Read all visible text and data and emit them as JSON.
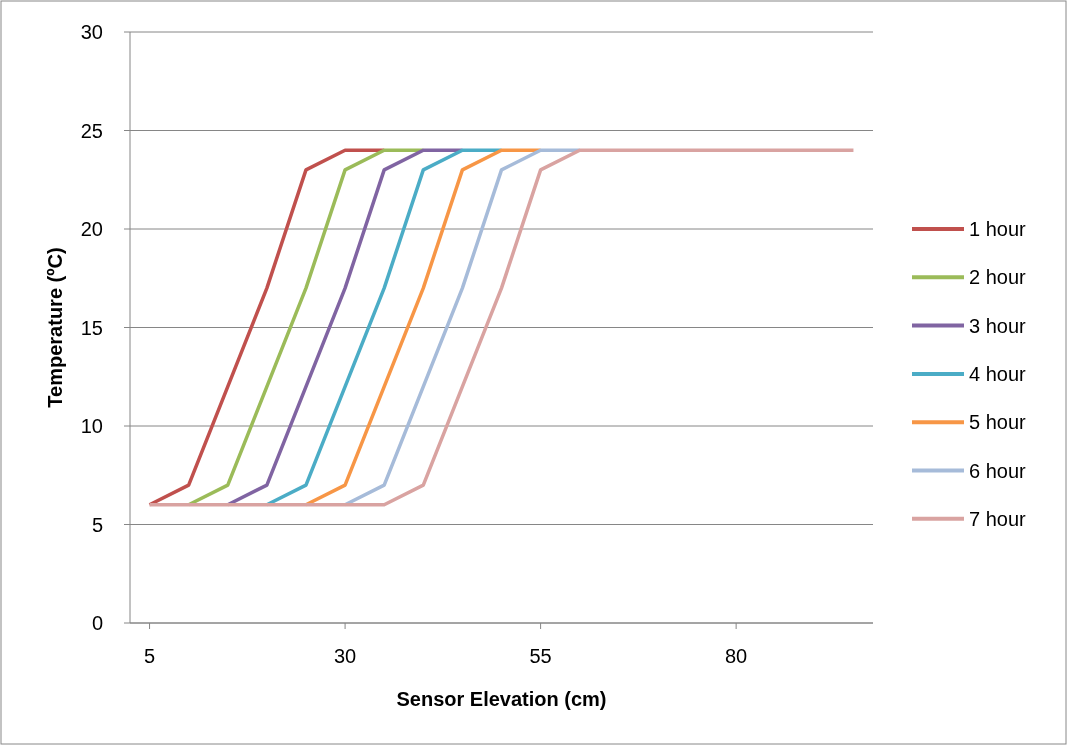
{
  "chart_data": {
    "type": "line",
    "xlabel": "Sensor Elevation (cm)",
    "ylabel": "Temperature (ºC)",
    "x": [
      5,
      10,
      15,
      20,
      25,
      30,
      35,
      40,
      45,
      50,
      55,
      60,
      65,
      70,
      75,
      80,
      85,
      90,
      95
    ],
    "xlim": [
      2.5,
      97.5
    ],
    "xticks": [
      5,
      30,
      55,
      80
    ],
    "ylim": [
      0,
      30
    ],
    "yticks": [
      0,
      5,
      10,
      15,
      20,
      25,
      30
    ],
    "grid": "y",
    "legend": "right",
    "marker": "none",
    "line_style": "solid",
    "series": [
      {
        "name": "1 hour",
        "color": "#c0504d",
        "values": [
          6,
          7,
          12,
          17,
          23,
          24,
          24,
          null,
          null,
          null,
          null,
          null,
          null,
          null,
          null,
          null,
          null,
          null,
          null
        ]
      },
      {
        "name": "2 hour",
        "color": "#9bbb59",
        "values": [
          null,
          6,
          7,
          12,
          17,
          23,
          24,
          24,
          null,
          null,
          null,
          null,
          null,
          null,
          null,
          null,
          null,
          null,
          null
        ]
      },
      {
        "name": "3 hour",
        "color": "#8064a2",
        "values": [
          null,
          null,
          6,
          7,
          12,
          17,
          23,
          24,
          24,
          null,
          null,
          null,
          null,
          null,
          null,
          null,
          null,
          null,
          null
        ]
      },
      {
        "name": "4 hour",
        "color": "#4bacc6",
        "values": [
          null,
          null,
          null,
          6,
          7,
          12,
          17,
          23,
          24,
          24,
          null,
          null,
          null,
          null,
          null,
          null,
          null,
          null,
          null
        ]
      },
      {
        "name": "5 hour",
        "color": "#f79646",
        "values": [
          null,
          null,
          null,
          null,
          6,
          7,
          12,
          17,
          23,
          24,
          24,
          null,
          null,
          null,
          null,
          null,
          null,
          null,
          null
        ]
      },
      {
        "name": "6 hour",
        "color": "#a6bbd9",
        "values": [
          null,
          null,
          null,
          null,
          null,
          6,
          7,
          12,
          17,
          23,
          24,
          24,
          null,
          null,
          null,
          null,
          null,
          null,
          null
        ]
      },
      {
        "name": "7 hour",
        "color": "#d9a3a1",
        "values": [
          6,
          6,
          6,
          6,
          6,
          6,
          6,
          7,
          12,
          17,
          23,
          24,
          24,
          24,
          24,
          24,
          24,
          24,
          24
        ]
      }
    ]
  }
}
